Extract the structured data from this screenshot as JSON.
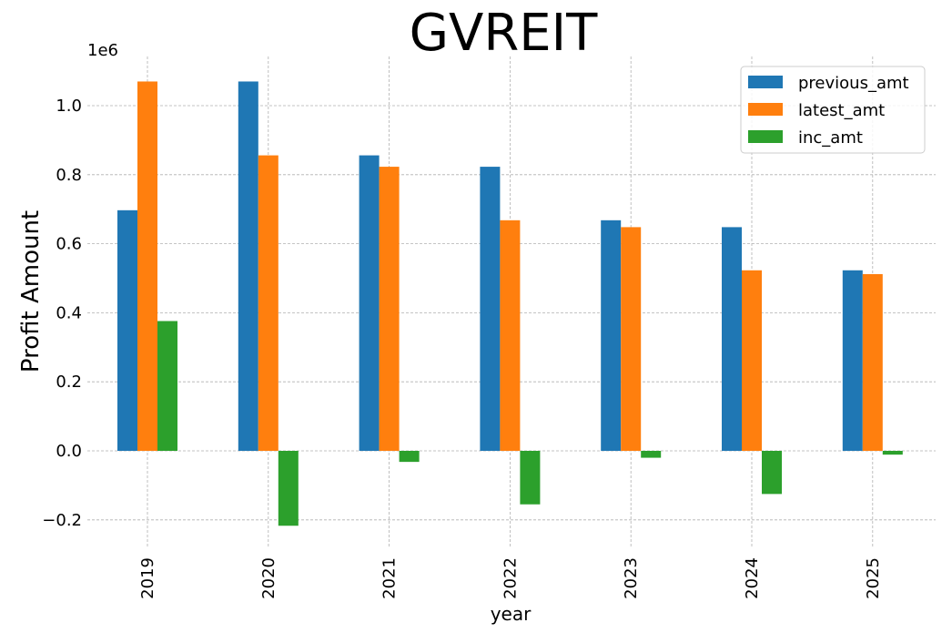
{
  "chart_data": {
    "type": "bar",
    "title": "GVREIT",
    "xlabel": "year",
    "ylabel": "Profit Amount",
    "y_offset_label": "1e6",
    "categories": [
      "2019",
      "2020",
      "2021",
      "2022",
      "2023",
      "2024",
      "2025"
    ],
    "series": [
      {
        "name": "previous_amt",
        "color": "#1f77b4",
        "values": [
          0.697,
          1.07,
          0.856,
          0.823,
          0.668,
          0.648,
          0.523
        ]
      },
      {
        "name": "latest_amt",
        "color": "#ff7f0e",
        "values": [
          1.07,
          0.856,
          0.823,
          0.668,
          0.648,
          0.523,
          0.512
        ]
      },
      {
        "name": "inc_amt",
        "color": "#2ca02c",
        "values": [
          0.376,
          -0.217,
          -0.032,
          -0.155,
          -0.02,
          -0.125,
          -0.011
        ]
      }
    ],
    "yticks": [
      "−0.2",
      "0.0",
      "0.2",
      "0.4",
      "0.6",
      "0.8",
      "1.0"
    ],
    "ytick_values": [
      -0.2,
      0.0,
      0.2,
      0.4,
      0.6,
      0.8,
      1.0
    ],
    "ylim": [
      -0.28,
      1.13
    ],
    "grid": true,
    "legend_position": "top-right"
  }
}
